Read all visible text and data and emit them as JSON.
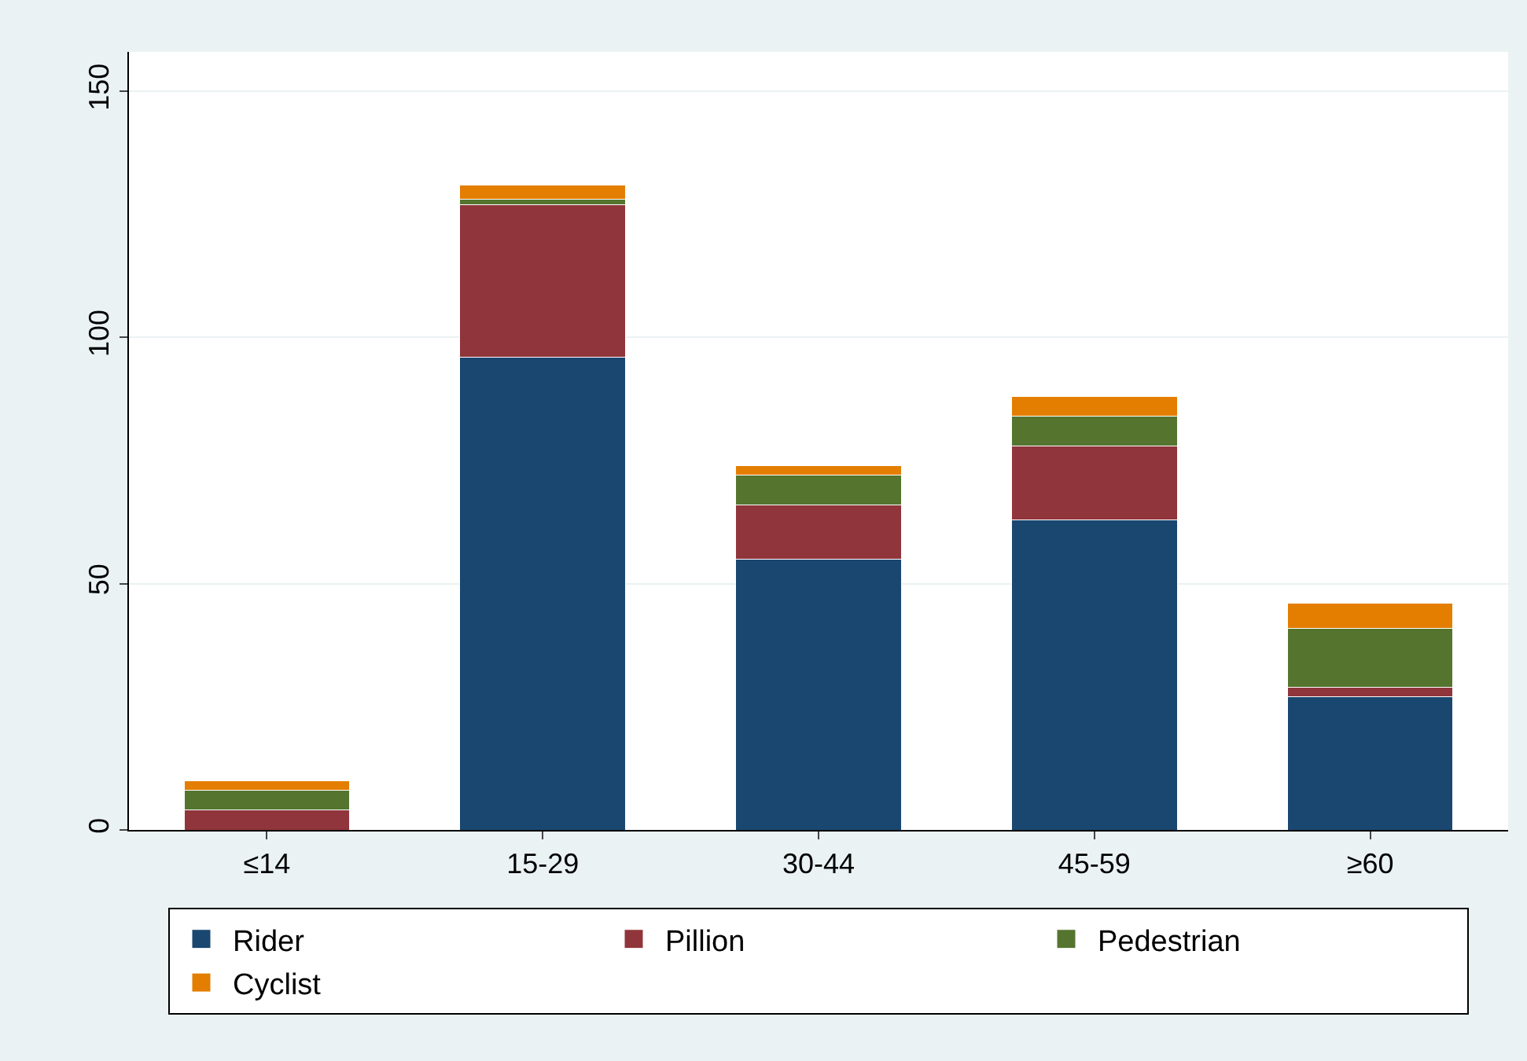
{
  "chart_data": {
    "type": "bar",
    "stacked": true,
    "categories": [
      "≤14",
      "15-29",
      "30-44",
      "45-59",
      "≥60"
    ],
    "series": [
      {
        "name": "Rider",
        "color": "#1a476f",
        "values": [
          0,
          96,
          55,
          63,
          27
        ]
      },
      {
        "name": "Pillion",
        "color": "#90353b",
        "values": [
          4,
          31,
          11,
          15,
          2
        ]
      },
      {
        "name": "Pedestrian",
        "color": "#55752f",
        "values": [
          4,
          1,
          6,
          6,
          12
        ]
      },
      {
        "name": "Cyclist",
        "color": "#e37e00",
        "values": [
          2,
          3,
          2,
          4,
          5
        ]
      }
    ],
    "ylim": [
      0,
      158
    ],
    "yticks": [
      0,
      50,
      100,
      150
    ],
    "grid": "y",
    "legend": "bottom"
  }
}
